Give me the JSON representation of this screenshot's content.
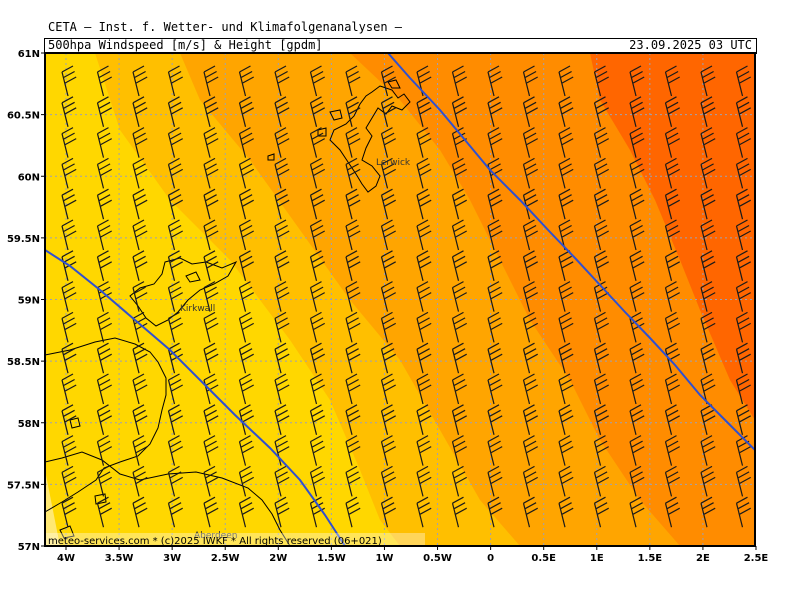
{
  "header": {
    "line1": "CETA — Inst. f. Wetter- und Klimafolgenanalysen —",
    "line2": "500hpa Windspeed [m/s] & Height [gpdm]",
    "datetime": "23.09.2025 03 UTC"
  },
  "axes": {
    "lat_labels": [
      "61N",
      "60.5N",
      "60N",
      "59.5N",
      "59N",
      "58.5N",
      "58N",
      "57.5N",
      "57N"
    ],
    "lon_labels": [
      "4W",
      "3.5W",
      "3W",
      "2.5W",
      "2W",
      "1.5W",
      "1W",
      "0.5W",
      "0",
      "0.5E",
      "1E",
      "1.5E",
      "2E",
      "2.5E"
    ]
  },
  "places": {
    "lerwick": "Lerwick",
    "kirkwall": "Kirkwall",
    "aberdeen": "Aberdeen"
  },
  "footer": "meteo-services.com * (c)2025 IWKF * All rights reserved (06+021)",
  "colors": {
    "band1": "#ffe873",
    "band2": "#ffd700",
    "band3": "#ffbf00",
    "band4": "#ffa500",
    "band5": "#ff8c00",
    "band6": "#ff6600",
    "height_contour": "#3050d0",
    "grid": "#9aa0b8"
  }
}
